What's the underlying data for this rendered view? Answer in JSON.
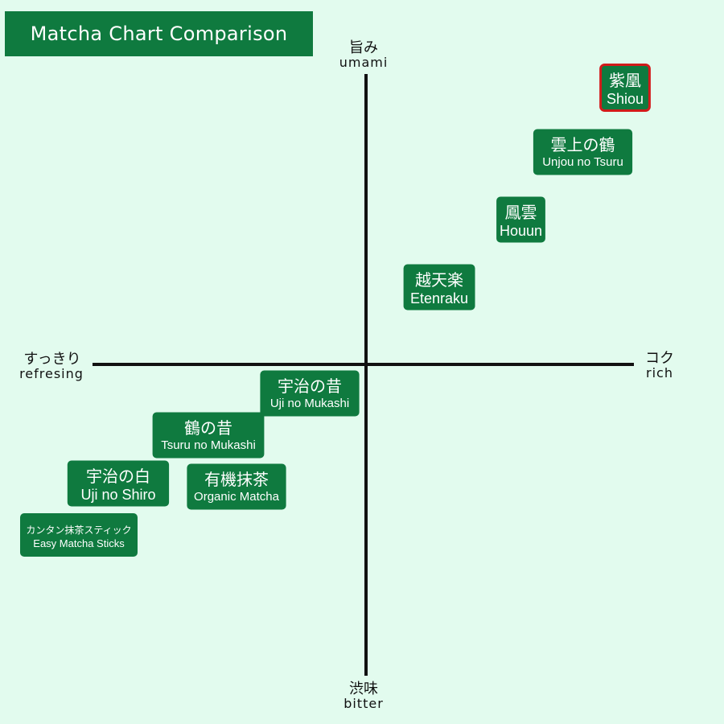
{
  "chart_data": {
    "type": "scatter",
    "title": "Matcha Chart Comparison",
    "axes": {
      "top": {
        "jp": "旨み",
        "en": "umami"
      },
      "bottom": {
        "jp": "渋味",
        "en": "bitter"
      },
      "left": {
        "jp": "すっきり",
        "en": "refresing"
      },
      "right": {
        "jp": "コク",
        "en": "rich"
      }
    },
    "xlim": [
      -100,
      100
    ],
    "ylim": [
      -100,
      100
    ],
    "points": [
      {
        "jp": "紫凰",
        "en": "Shiou",
        "x": 92,
        "y": 86,
        "highlight": true
      },
      {
        "jp": "雲上の鶴",
        "en": "Unjou no Tsuru",
        "x": 77,
        "y": 66,
        "highlight": false
      },
      {
        "jp": "鳳雲",
        "en": "Houun",
        "x": 55,
        "y": 45,
        "highlight": false
      },
      {
        "jp": "越天楽",
        "en": "Etenraku",
        "x": 26,
        "y": 24,
        "highlight": false
      },
      {
        "jp": "宇治の昔",
        "en": "Uji no Mukashi",
        "x": -20,
        "y": -9,
        "highlight": false
      },
      {
        "jp": "鶴の昔",
        "en": "Tsuru no Mukashi",
        "x": -56,
        "y": -22,
        "highlight": false
      },
      {
        "jp": "宇治の白",
        "en": "Uji no Shiro",
        "x": -88,
        "y": -37,
        "highlight": false
      },
      {
        "jp": "有機抹茶",
        "en": "Organic Matcha",
        "x": -46,
        "y": -38,
        "highlight": false
      },
      {
        "jp": "カンタン抹茶スティック",
        "en": "Easy Matcha Sticks",
        "x": -102,
        "y": -53,
        "highlight": false
      }
    ],
    "colors": {
      "background": "#e2fbee",
      "box": "#0f7a3f",
      "highlight_border": "#d21a1a",
      "axis": "#111111"
    }
  }
}
